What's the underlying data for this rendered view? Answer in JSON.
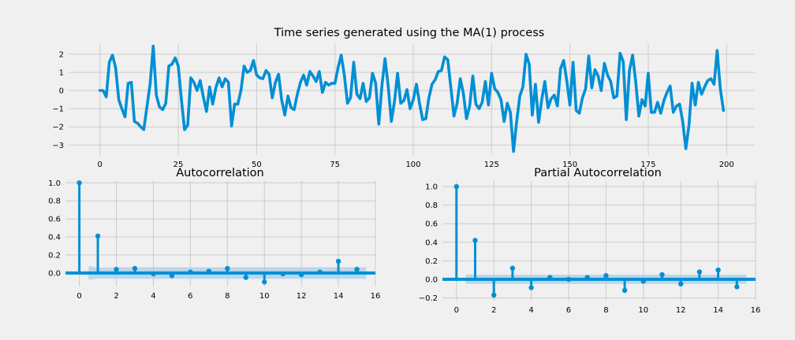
{
  "colors": {
    "background": "#f0f0f0",
    "plot_bg": "#f0f0f0",
    "grid": "#cbcbcb",
    "line": "#008fd5",
    "band": "#a9cfe9",
    "text": "#000000"
  },
  "chart_data": [
    {
      "type": "line",
      "title": "Time series generated using the MA(1) process",
      "xlabel": "",
      "ylabel": "",
      "xlim": [
        -10,
        209
      ],
      "ylim": [
        -3.55,
        2.6
      ],
      "xticks": [
        0,
        25,
        50,
        75,
        100,
        125,
        150,
        175,
        200
      ],
      "yticks": [
        -3,
        -2,
        -1,
        0,
        1,
        2
      ],
      "grid": true,
      "legend": "none",
      "series": [
        {
          "values": [
            0.0,
            0.0,
            -0.35,
            1.55,
            1.95,
            1.25,
            -0.5,
            -1.0,
            -1.45,
            0.4,
            0.45,
            -1.7,
            -1.8,
            -2.0,
            -2.15,
            -0.9,
            0.35,
            2.45,
            -0.25,
            -0.9,
            -1.05,
            -0.7,
            1.35,
            1.45,
            1.8,
            1.35,
            -0.5,
            -2.15,
            -1.9,
            0.7,
            0.45,
            0.0,
            0.55,
            -0.35,
            -1.15,
            0.2,
            -0.75,
            0.15,
            0.7,
            0.2,
            0.65,
            0.45,
            -1.95,
            -0.75,
            -0.75,
            0.0,
            1.35,
            1.0,
            1.1,
            1.65,
            0.85,
            0.7,
            0.65,
            1.1,
            0.9,
            -0.4,
            0.45,
            0.9,
            -0.5,
            -1.35,
            -0.3,
            -0.95,
            -1.05,
            -0.2,
            0.45,
            0.85,
            0.3,
            1.05,
            0.8,
            0.5,
            1.05,
            -0.1,
            0.45,
            0.3,
            0.4,
            0.4,
            1.25,
            1.95,
            0.85,
            -0.7,
            -0.4,
            1.55,
            -0.2,
            -0.45,
            0.4,
            -0.6,
            -0.4,
            0.95,
            0.4,
            -1.85,
            0.3,
            1.75,
            0.25,
            -1.7,
            -0.6,
            0.95,
            -0.7,
            -0.55,
            0.05,
            -1.0,
            -0.5,
            0.35,
            -0.7,
            -1.6,
            -1.55,
            -0.4,
            0.35,
            0.6,
            1.05,
            1.1,
            1.85,
            1.7,
            0.15,
            -1.4,
            -0.7,
            0.65,
            -0.15,
            -1.55,
            -0.85,
            0.8,
            -0.75,
            -1.0,
            -0.65,
            0.5,
            -0.8,
            0.95,
            0.1,
            -0.1,
            -0.5,
            -1.7,
            -0.7,
            -1.2,
            -3.35,
            -1.7,
            -0.3,
            0.2,
            2.0,
            1.45,
            -1.35,
            0.35,
            -1.75,
            -0.5,
            0.5,
            -0.95,
            -0.45,
            -0.25,
            -0.85,
            1.2,
            1.65,
            0.55,
            -0.8,
            1.55,
            -1.1,
            -1.25,
            -0.4,
            0.1,
            1.9,
            0.15,
            1.15,
            0.8,
            0.0,
            1.5,
            0.85,
            0.5,
            -0.4,
            -0.3,
            2.05,
            1.6,
            -1.6,
            1.1,
            1.95,
            0.5,
            -1.4,
            -0.5,
            -0.85,
            0.95,
            -1.2,
            -1.2,
            -0.65,
            -1.25,
            -0.55,
            -0.1,
            0.25,
            -1.2,
            -0.85,
            -0.75,
            -1.7,
            -3.2,
            -1.9,
            0.4,
            -0.8,
            0.45,
            -0.2,
            0.2,
            0.55,
            0.65,
            0.35,
            2.2,
            0.1,
            -1.1
          ]
        }
      ]
    },
    {
      "type": "stem",
      "title": "Autocorrelation",
      "xlim": [
        -0.75,
        16.0
      ],
      "ylim": [
        -0.15,
        1.02
      ],
      "xticks": [
        0,
        2,
        4,
        6,
        8,
        10,
        12,
        14,
        16
      ],
      "yticks": [
        0.0,
        0.2,
        0.4,
        0.6,
        0.8,
        1.0
      ],
      "grid": true,
      "confidence_band": {
        "lags": [
          0,
          1,
          2,
          3,
          4,
          5,
          6,
          7,
          8,
          9,
          10,
          11,
          12,
          13,
          14,
          15
        ],
        "upper": [
          0.075,
          0.06,
          0.063,
          0.064,
          0.064,
          0.064,
          0.064,
          0.064,
          0.064,
          0.064,
          0.064,
          0.064,
          0.064,
          0.064,
          0.064,
          0.064
        ],
        "lower": [
          -0.075,
          -0.06,
          -0.063,
          -0.064,
          -0.064,
          -0.064,
          -0.064,
          -0.064,
          -0.064,
          -0.064,
          -0.064,
          -0.064,
          -0.064,
          -0.064,
          -0.064,
          -0.064
        ],
        "band_x": [
          0.5,
          15.5
        ]
      },
      "lags": [
        0,
        1,
        2,
        3,
        4,
        5,
        6,
        7,
        8,
        9,
        10,
        11,
        12,
        13,
        14,
        15
      ],
      "values": [
        1.0,
        0.41,
        0.04,
        0.05,
        -0.01,
        -0.03,
        0.01,
        0.02,
        0.05,
        -0.05,
        -0.1,
        -0.01,
        -0.02,
        0.01,
        0.13,
        0.04
      ]
    },
    {
      "type": "stem",
      "title": "Partial Autocorrelation",
      "xlim": [
        -0.75,
        16.0
      ],
      "ylim": [
        -0.23,
        1.06
      ],
      "xticks": [
        0,
        2,
        4,
        6,
        8,
        10,
        12,
        14,
        16
      ],
      "yticks": [
        -0.2,
        0.0,
        0.2,
        0.4,
        0.6,
        0.8,
        1.0
      ],
      "grid": true,
      "confidence_band": {
        "upper": 0.05,
        "lower": -0.05,
        "band_x": [
          0.5,
          15.5
        ]
      },
      "lags": [
        0,
        1,
        2,
        3,
        4,
        5,
        6,
        7,
        8,
        9,
        10,
        11,
        12,
        13,
        14,
        15
      ],
      "values": [
        1.0,
        0.42,
        -0.17,
        0.12,
        -0.09,
        0.02,
        0.0,
        0.02,
        0.04,
        -0.12,
        -0.02,
        0.05,
        -0.05,
        0.08,
        0.1,
        -0.08
      ]
    }
  ]
}
